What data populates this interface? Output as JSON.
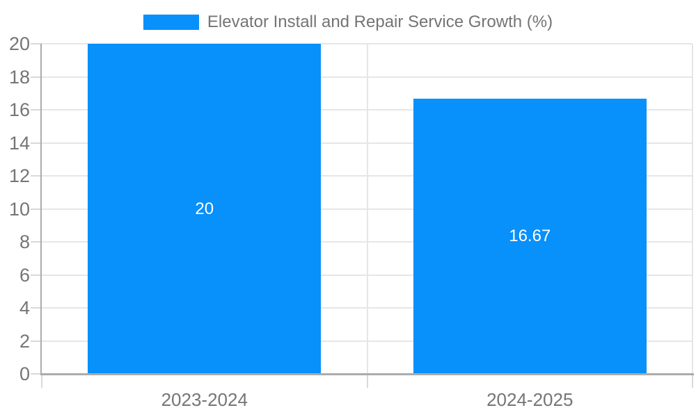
{
  "legend": {
    "label": "Elevator Install and Repair Service Growth (%)"
  },
  "chart_data": {
    "type": "bar",
    "title": "Elevator Install and Repair Service Growth (%)",
    "categories": [
      "2023-2024",
      "2024-2025"
    ],
    "values": [
      20,
      16.67
    ],
    "data_labels": [
      "20",
      "16.67"
    ],
    "ylim": [
      0,
      20
    ],
    "yticks": [
      0,
      2,
      4,
      6,
      8,
      10,
      12,
      14,
      16,
      18,
      20
    ],
    "grid": true,
    "legend_position": "top",
    "colors": {
      "bar": "#0890fb",
      "grid": "#e6e6e6",
      "axis": "#ababab",
      "tick": "#d9d9d9",
      "axis_label": "#757575",
      "legend_text": "#747474",
      "data_label": "#ffffff",
      "background": "#ffffff"
    }
  }
}
